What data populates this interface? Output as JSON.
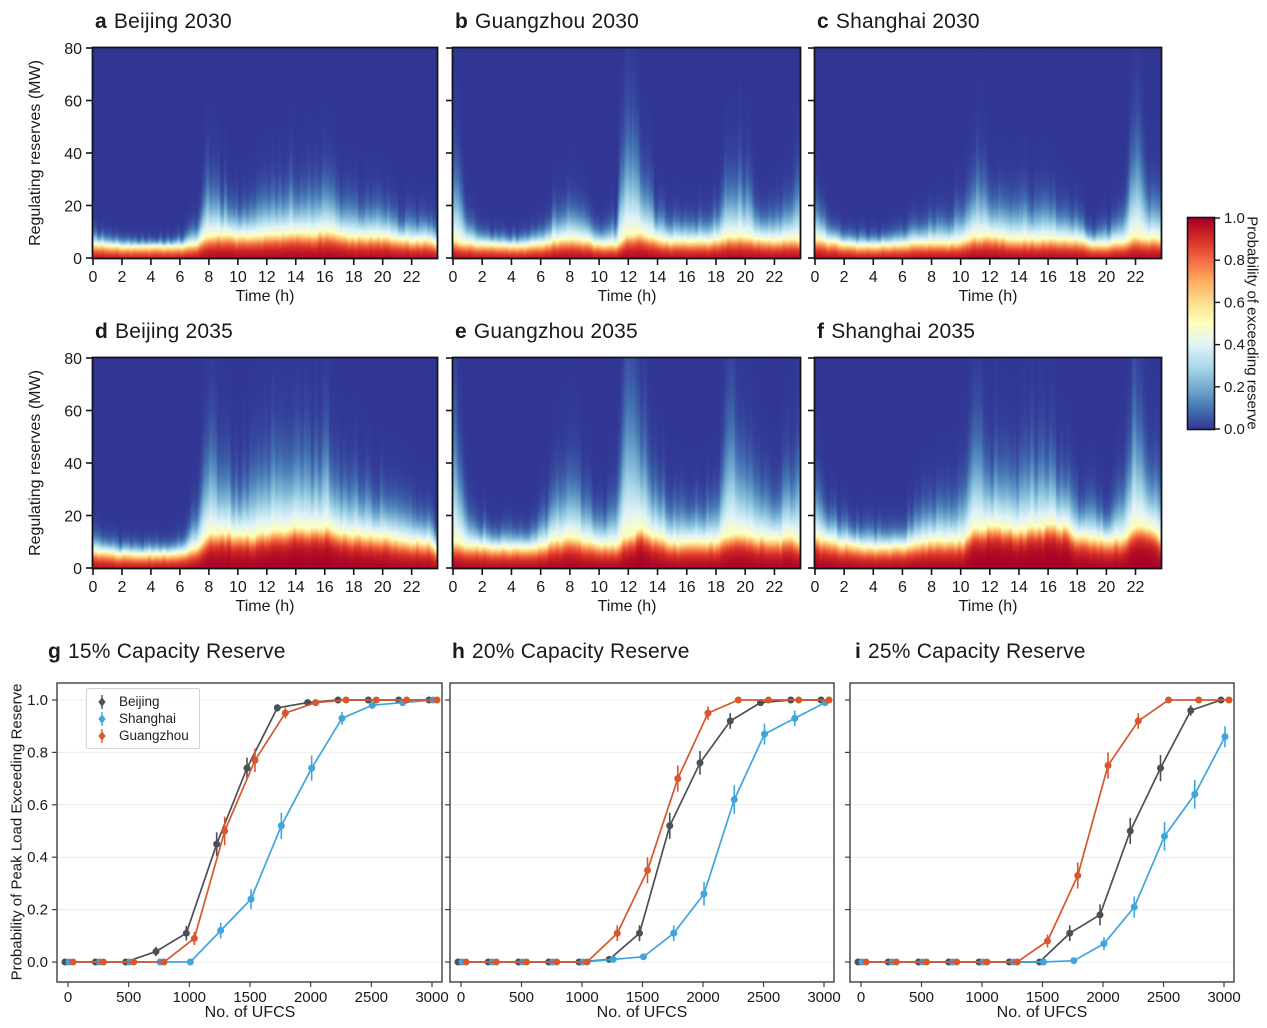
{
  "colormap": {
    "name": "RdYlBu_r",
    "stops": [
      "#313695",
      "#4575b4",
      "#74add1",
      "#abd9e9",
      "#e0f3f8",
      "#ffffbf",
      "#fee090",
      "#fdae61",
      "#f46d43",
      "#d73027",
      "#a50026"
    ]
  },
  "colorbar": {
    "label": "Probability of exceeding reserve",
    "tick_labels": [
      "0.0",
      "0.2",
      "0.4",
      "0.6",
      "0.8",
      "1.0"
    ]
  },
  "legend": {
    "items": [
      "Beijing",
      "Shanghai",
      "Guangzhou"
    ]
  },
  "series_colors": {
    "beijing": "#4a5056",
    "shanghai": "#3fa5dc",
    "guangzhou": "#d8572c"
  },
  "chart_data": [
    {
      "type": "heatmap",
      "letter": "a",
      "title": "Beijing 2030",
      "xlabel": "Time (h)",
      "ylabel": "Regulating reserves (MW)",
      "x_range": [
        0,
        23.75
      ],
      "y_range": [
        0,
        80
      ],
      "x_ticks": [
        0,
        2,
        4,
        6,
        8,
        10,
        12,
        14,
        16,
        18,
        20,
        22
      ],
      "y_ticks": [
        0,
        20,
        40,
        60,
        80
      ],
      "p50_mw": [
        5.5,
        5,
        4.5,
        4.5,
        4.5,
        4.5,
        4.5,
        5.5,
        9,
        9.5,
        8.5,
        8.5,
        9,
        9.5,
        10,
        9.5,
        10.5,
        9,
        8.5,
        8.5,
        8.5,
        7.5,
        7,
        7
      ],
      "tail_mw": [
        2,
        1.5,
        1.2,
        1.2,
        1.2,
        1.2,
        1.5,
        3,
        9,
        6,
        4.5,
        5,
        6.5,
        7,
        7,
        6.5,
        7.5,
        5.5,
        5,
        5,
        4.5,
        3.5,
        3.5,
        3.5
      ]
    },
    {
      "type": "heatmap",
      "letter": "b",
      "title": "Guangzhou 2030",
      "xlabel": "Time (h)",
      "ylabel": "",
      "x_range": [
        0,
        23.75
      ],
      "y_range": [
        0,
        80
      ],
      "x_ticks": [
        0,
        2,
        4,
        6,
        8,
        10,
        12,
        14,
        16,
        18,
        20,
        22
      ],
      "y_ticks": [
        0,
        20,
        40,
        60,
        80
      ],
      "p50_mw": [
        7,
        6,
        5.5,
        5,
        5,
        5,
        5.5,
        7,
        7.5,
        7,
        5.5,
        5.5,
        9,
        9.5,
        7.5,
        6.5,
        6.5,
        6.5,
        7,
        8.5,
        8.5,
        7.5,
        7,
        7.5
      ],
      "tail_mw": [
        13,
        3.5,
        2,
        1.8,
        1.8,
        1.8,
        2.5,
        4.5,
        5,
        4.5,
        2.5,
        3.5,
        18,
        9,
        4.5,
        3.5,
        3.5,
        3.5,
        4.5,
        10,
        8,
        4.5,
        4,
        6
      ]
    },
    {
      "type": "heatmap",
      "letter": "c",
      "title": "Shanghai 2030",
      "xlabel": "Time (h)",
      "ylabel": "",
      "x_range": [
        0,
        23.75
      ],
      "y_range": [
        0,
        80
      ],
      "x_ticks": [
        0,
        2,
        4,
        6,
        8,
        10,
        12,
        14,
        16,
        18,
        20,
        22
      ],
      "y_ticks": [
        0,
        20,
        40,
        60,
        80
      ],
      "p50_mw": [
        7.5,
        6.5,
        5.5,
        5,
        5,
        5,
        5.5,
        6,
        6,
        6,
        6.5,
        8.5,
        8.5,
        8,
        7.5,
        7.5,
        7.5,
        7.5,
        7,
        5.5,
        5.5,
        6.5,
        8.5,
        8
      ],
      "tail_mw": [
        5.5,
        3,
        2,
        1.8,
        1.8,
        1.8,
        2.2,
        3,
        3.5,
        4,
        5,
        9,
        6.5,
        5.5,
        6,
        5.5,
        5.5,
        5,
        4,
        2.2,
        2.8,
        4.5,
        15,
        6.5
      ]
    },
    {
      "type": "heatmap",
      "letter": "d",
      "title": "Beijing 2035",
      "xlabel": "Time (h)",
      "ylabel": "Regulating reserves (MW)",
      "x_range": [
        0,
        23.75
      ],
      "y_range": [
        0,
        80
      ],
      "x_ticks": [
        0,
        2,
        4,
        6,
        8,
        10,
        12,
        14,
        16,
        18,
        20,
        22
      ],
      "y_ticks": [
        0,
        20,
        40,
        60,
        80
      ],
      "p50_mw": [
        7,
        6,
        5.5,
        5.5,
        5.5,
        5.5,
        6,
        8,
        13,
        14,
        13,
        13,
        14,
        15,
        16,
        15.5,
        16,
        14,
        13,
        12.5,
        12,
        11,
        10.5,
        10
      ],
      "tail_mw": [
        3,
        2.2,
        1.8,
        1.8,
        1.8,
        1.8,
        2.5,
        5,
        13,
        10,
        8,
        9,
        11,
        12,
        12,
        11,
        12,
        9,
        8,
        7,
        6.5,
        5.5,
        5,
        5
      ]
    },
    {
      "type": "heatmap",
      "letter": "e",
      "title": "Guangzhou 2035",
      "xlabel": "Time (h)",
      "ylabel": "",
      "x_range": [
        0,
        23.75
      ],
      "y_range": [
        0,
        80
      ],
      "x_ticks": [
        0,
        2,
        4,
        6,
        8,
        10,
        12,
        14,
        16,
        18,
        20,
        22
      ],
      "y_ticks": [
        0,
        20,
        40,
        60,
        80
      ],
      "p50_mw": [
        10,
        9,
        8.5,
        8,
        8,
        8,
        8.5,
        11,
        12,
        11,
        9,
        9,
        13,
        15,
        12,
        10,
        10,
        10,
        10.5,
        13,
        13,
        12,
        11,
        12
      ],
      "tail_mw": [
        18,
        6,
        3.5,
        3,
        3,
        3,
        4.5,
        8,
        9,
        8,
        4.5,
        6,
        20,
        13,
        8,
        5.5,
        5.5,
        5.5,
        7,
        16,
        11,
        8,
        7,
        9
      ]
    },
    {
      "type": "heatmap",
      "letter": "f",
      "title": "Shanghai 2035",
      "xlabel": "Time (h)",
      "ylabel": "",
      "x_range": [
        0,
        23.75
      ],
      "y_range": [
        0,
        80
      ],
      "x_ticks": [
        0,
        2,
        4,
        6,
        8,
        10,
        12,
        14,
        16,
        18,
        20,
        22
      ],
      "y_ticks": [
        0,
        20,
        40,
        60,
        80
      ],
      "p50_mw": [
        12,
        11,
        9.5,
        8.5,
        8,
        8,
        8.5,
        10,
        10.5,
        10.5,
        11,
        15,
        16,
        15.5,
        15,
        16,
        16.5,
        16,
        13,
        12,
        11,
        11.5,
        16,
        15
      ],
      "tail_mw": [
        7,
        4.5,
        3.5,
        3,
        3,
        3,
        3.5,
        5,
        6,
        6.5,
        8,
        16,
        10,
        9,
        10,
        11,
        10,
        8,
        5.5,
        5.5,
        4.5,
        7,
        18,
        9
      ]
    },
    {
      "type": "line",
      "letter": "g",
      "title": "15% Capacity Reserve",
      "xlabel": "No. of UFCS",
      "ylabel": "Probability of Peak Load Exceeding Reserve",
      "x": [
        0,
        250,
        500,
        750,
        1000,
        1250,
        1500,
        1750,
        2000,
        2250,
        2500,
        2750,
        3000
      ],
      "x_ticks": [
        0,
        500,
        1000,
        1500,
        2000,
        2500,
        3000
      ],
      "y_ticks": [
        0,
        0.2,
        0.4,
        0.6,
        0.8,
        1.0
      ],
      "xlim": [
        0,
        3000
      ],
      "ylim": [
        -0.07,
        1.06
      ],
      "grid": true,
      "legend_position": "upper left",
      "series": [
        {
          "name": "Beijing",
          "color": "#4a5056",
          "values": [
            0,
            0,
            0,
            0.04,
            0.11,
            0.45,
            0.74,
            0.97,
            0.99,
            1.0,
            1.0,
            1.0,
            1.0
          ],
          "err": [
            0.006,
            0.006,
            0.006,
            0.018,
            0.028,
            0.045,
            0.04,
            0.014,
            0.008,
            0.005,
            0.005,
            0.005,
            0.005
          ]
        },
        {
          "name": "Shanghai",
          "color": "#3fa5dc",
          "values": [
            0,
            0,
            0,
            0,
            0,
            0.12,
            0.24,
            0.52,
            0.74,
            0.93,
            0.98,
            0.99,
            1.0
          ],
          "err": [
            0.006,
            0.006,
            0.006,
            0.006,
            0.006,
            0.03,
            0.038,
            0.05,
            0.048,
            0.025,
            0.014,
            0.01,
            0.006
          ]
        },
        {
          "name": "Guangzhou",
          "color": "#d8572c",
          "values": [
            0,
            0,
            0,
            0,
            0.09,
            0.5,
            0.77,
            0.95,
            0.99,
            1.0,
            1.0,
            1.0,
            1.0
          ],
          "err": [
            0.006,
            0.006,
            0.006,
            0.006,
            0.025,
            0.055,
            0.045,
            0.02,
            0.01,
            0.006,
            0.006,
            0.006,
            0.006
          ]
        }
      ]
    },
    {
      "type": "line",
      "letter": "h",
      "title": "20% Capacity Reserve",
      "xlabel": "No. of UFCS",
      "ylabel": "",
      "x": [
        0,
        250,
        500,
        750,
        1000,
        1250,
        1500,
        1750,
        2000,
        2250,
        2500,
        2750,
        3000
      ],
      "x_ticks": [
        0,
        500,
        1000,
        1500,
        2000,
        2500,
        3000
      ],
      "y_ticks": [
        0,
        0.2,
        0.4,
        0.6,
        0.8,
        1.0
      ],
      "xlim": [
        0,
        3000
      ],
      "ylim": [
        -0.07,
        1.06
      ],
      "grid": true,
      "legend_position": "none",
      "series": [
        {
          "name": "Beijing",
          "color": "#4a5056",
          "values": [
            0,
            0,
            0,
            0,
            0,
            0.01,
            0.11,
            0.52,
            0.76,
            0.92,
            0.99,
            1.0,
            1.0
          ],
          "err": [
            0.006,
            0.006,
            0.006,
            0.006,
            0.006,
            0.01,
            0.03,
            0.05,
            0.045,
            0.03,
            0.012,
            0.006,
            0.006
          ]
        },
        {
          "name": "Shanghai",
          "color": "#3fa5dc",
          "values": [
            0,
            0,
            0,
            0,
            0,
            0.01,
            0.02,
            0.11,
            0.26,
            0.62,
            0.87,
            0.93,
            0.99
          ],
          "err": [
            0.006,
            0.006,
            0.006,
            0.006,
            0.006,
            0.01,
            0.012,
            0.03,
            0.045,
            0.055,
            0.04,
            0.03,
            0.012
          ]
        },
        {
          "name": "Guangzhou",
          "color": "#d8572c",
          "values": [
            0,
            0,
            0,
            0,
            0,
            0.11,
            0.35,
            0.7,
            0.95,
            1.0,
            1.0,
            1.0,
            1.0
          ],
          "err": [
            0.006,
            0.006,
            0.006,
            0.006,
            0.006,
            0.03,
            0.05,
            0.05,
            0.025,
            0.008,
            0.006,
            0.006,
            0.006
          ]
        }
      ]
    },
    {
      "type": "line",
      "letter": "i",
      "title": "25% Capacity Reserve",
      "xlabel": "No. of UFCS",
      "ylabel": "",
      "x": [
        0,
        250,
        500,
        750,
        1000,
        1250,
        1500,
        1750,
        2000,
        2250,
        2500,
        2750,
        3000
      ],
      "x_ticks": [
        0,
        500,
        1000,
        1500,
        2000,
        2500,
        3000
      ],
      "y_ticks": [
        0,
        0.2,
        0.4,
        0.6,
        0.8,
        1.0
      ],
      "xlim": [
        0,
        3000
      ],
      "ylim": [
        -0.07,
        1.06
      ],
      "grid": true,
      "legend_position": "none",
      "series": [
        {
          "name": "Beijing",
          "color": "#4a5056",
          "values": [
            0,
            0,
            0,
            0,
            0,
            0,
            0,
            0.11,
            0.18,
            0.5,
            0.74,
            0.96,
            1.0
          ],
          "err": [
            0.006,
            0.006,
            0.006,
            0.006,
            0.006,
            0.006,
            0.008,
            0.03,
            0.04,
            0.05,
            0.05,
            0.02,
            0.008
          ]
        },
        {
          "name": "Shanghai",
          "color": "#3fa5dc",
          "values": [
            0,
            0,
            0,
            0,
            0,
            0,
            0,
            0.005,
            0.07,
            0.21,
            0.48,
            0.64,
            0.86
          ],
          "err": [
            0.006,
            0.006,
            0.006,
            0.006,
            0.006,
            0.006,
            0.006,
            0.008,
            0.025,
            0.04,
            0.055,
            0.055,
            0.04
          ]
        },
        {
          "name": "Guangzhou",
          "color": "#d8572c",
          "values": [
            0,
            0,
            0,
            0,
            0,
            0,
            0.08,
            0.33,
            0.75,
            0.92,
            1.0,
            1.0,
            1.0
          ],
          "err": [
            0.006,
            0.006,
            0.006,
            0.006,
            0.006,
            0.006,
            0.025,
            0.05,
            0.05,
            0.03,
            0.01,
            0.006,
            0.006
          ]
        }
      ]
    }
  ]
}
